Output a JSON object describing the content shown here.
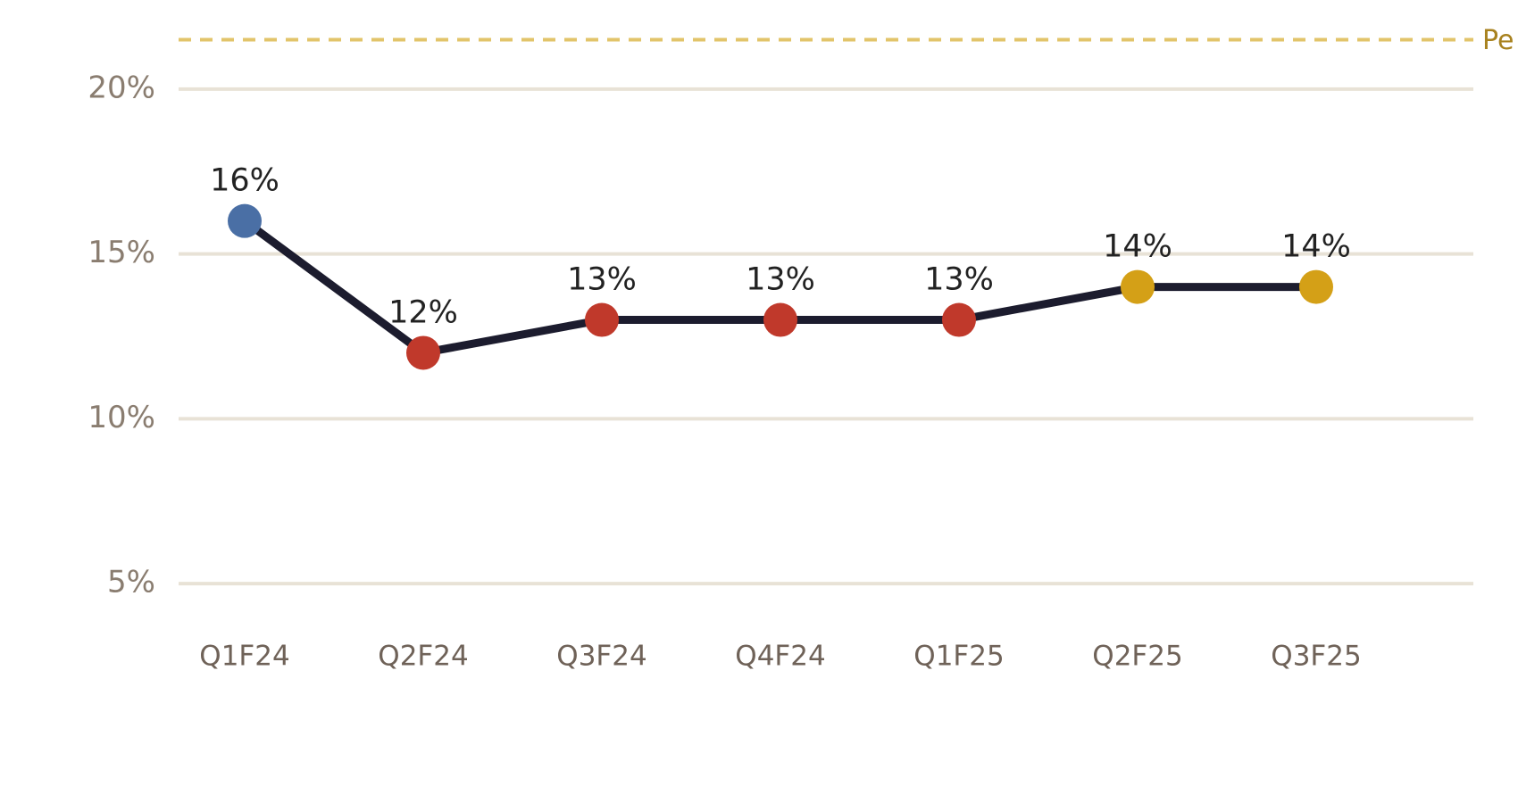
{
  "chart_data": {
    "type": "line",
    "categories": [
      "Q1F24",
      "Q2F24",
      "Q3F24",
      "Q4F24",
      "Q1F25",
      "Q2F25",
      "Q3F25"
    ],
    "series": [
      {
        "values": [
          16,
          12,
          13,
          13,
          13,
          14,
          14
        ],
        "value_labels": [
          "16%",
          "12%",
          "13%",
          "13%",
          "13%",
          "14%",
          "14%"
        ],
        "color": "#1c1c2e",
        "point_colors": [
          "#4a6fa5",
          "#c0392b",
          "#c0392b",
          "#c0392b",
          "#c0392b",
          "#d4a017",
          "#d4a017"
        ]
      }
    ],
    "ylim": [
      3,
      22
    ],
    "yticks": [
      {
        "value": 5,
        "label": "5%"
      },
      {
        "value": 10,
        "label": "10%"
      },
      {
        "value": 15,
        "label": "15%"
      },
      {
        "value": 20,
        "label": "20%"
      }
    ],
    "grid": true,
    "reference_line": {
      "value": 21.5,
      "label": "Pe",
      "color": "#e2c46a"
    }
  }
}
